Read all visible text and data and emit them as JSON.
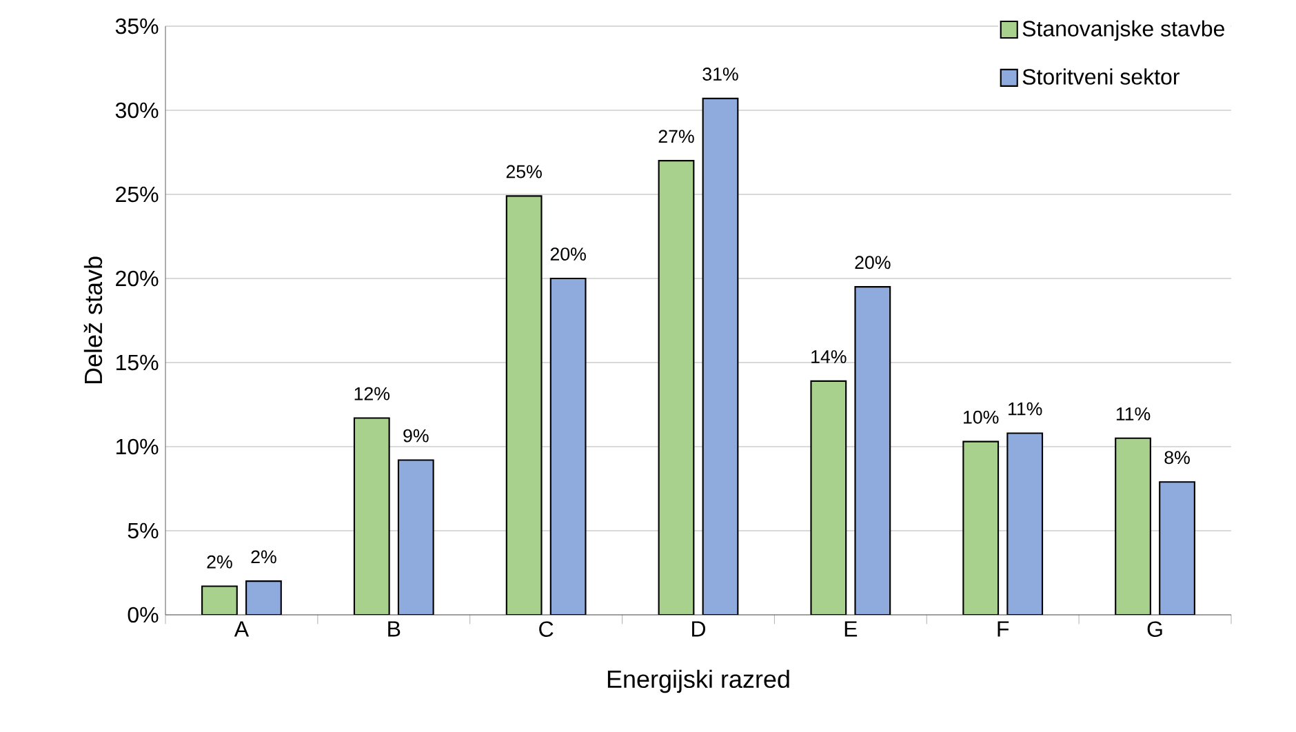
{
  "chart_data": {
    "type": "bar",
    "xlabel": "Energijski razred",
    "ylabel": "Delež stavb",
    "categories": [
      "A",
      "B",
      "C",
      "D",
      "E",
      "F",
      "G"
    ],
    "series": [
      {
        "name": "Stanovanjske stavbe",
        "color": "#a9d18e",
        "values": [
          1.7,
          11.7,
          24.9,
          27.0,
          13.9,
          10.3,
          10.5
        ],
        "value_labels": [
          "2%",
          "12%",
          "25%",
          "27%",
          "14%",
          "10%",
          "11%"
        ]
      },
      {
        "name": "Storitveni sektor",
        "color": "#8faadc",
        "values": [
          2.0,
          9.2,
          20.0,
          30.7,
          19.5,
          10.8,
          7.9
        ],
        "value_labels": [
          "2%",
          "9%",
          "20%",
          "31%",
          "20%",
          "11%",
          "8%"
        ]
      }
    ],
    "ylim": [
      0,
      35
    ],
    "yticks": [
      {
        "value": 0,
        "label": "0%"
      },
      {
        "value": 5,
        "label": "5%"
      },
      {
        "value": 10,
        "label": "10%"
      },
      {
        "value": 15,
        "label": "15%"
      },
      {
        "value": 20,
        "label": "20%"
      },
      {
        "value": 25,
        "label": "25%"
      },
      {
        "value": 30,
        "label": "30%"
      },
      {
        "value": 35,
        "label": "35%"
      }
    ],
    "grid": "y",
    "legend": "top right"
  }
}
